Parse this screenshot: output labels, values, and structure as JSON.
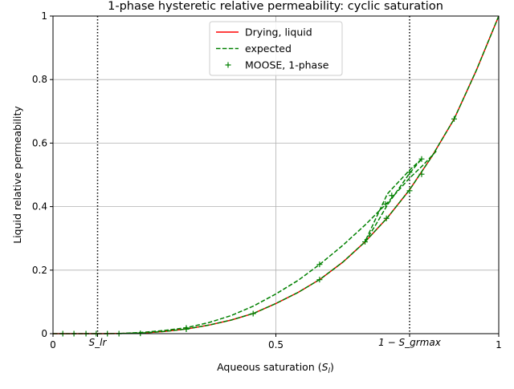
{
  "chart_data": {
    "type": "line",
    "title": "1-phase hysteretic relative permeability: cyclic saturation",
    "xlabel": "Aqueous saturation (S_l)",
    "ylabel": "Liquid relative permeability",
    "xlim": [
      0,
      1
    ],
    "ylim": [
      0,
      1
    ],
    "grid": true,
    "legend_placement": "top-center",
    "x_ticks": [
      {
        "value": 0,
        "label": "0"
      },
      {
        "value": 0.1,
        "label": "S_lr"
      },
      {
        "value": 0.5,
        "label": "0.5"
      },
      {
        "value": 0.8,
        "label": "1 − S_grmax"
      },
      {
        "value": 1,
        "label": "1"
      }
    ],
    "y_ticks": [
      {
        "value": 0,
        "label": "0"
      },
      {
        "value": 0.2,
        "label": "0.2"
      },
      {
        "value": 0.4,
        "label": "0.4"
      },
      {
        "value": 0.6,
        "label": "0.6"
      },
      {
        "value": 0.8,
        "label": "0.8"
      },
      {
        "value": 1,
        "label": "1"
      }
    ],
    "vlines": [
      0.1,
      0.8
    ],
    "series": [
      {
        "name": "Drying, liquid",
        "style": "solid",
        "color": "#ff0000",
        "segments": [
          [
            [
              0,
              0
            ],
            [
              0.1,
              0
            ],
            [
              0.15,
              0.0005
            ],
            [
              0.2,
              0.002
            ],
            [
              0.25,
              0.007
            ],
            [
              0.3,
              0.015
            ],
            [
              0.35,
              0.027
            ],
            [
              0.4,
              0.043
            ],
            [
              0.45,
              0.064
            ],
            [
              0.5,
              0.095
            ],
            [
              0.55,
              0.13
            ],
            [
              0.6,
              0.172
            ],
            [
              0.65,
              0.225
            ],
            [
              0.7,
              0.289
            ],
            [
              0.75,
              0.365
            ],
            [
              0.8,
              0.453
            ],
            [
              0.85,
              0.558
            ],
            [
              0.9,
              0.676
            ],
            [
              0.95,
              0.83
            ],
            [
              1,
              1
            ]
          ]
        ]
      },
      {
        "name": "expected",
        "style": "dashed",
        "color": "#008000",
        "segments": [
          [
            [
              0,
              0
            ],
            [
              0.1,
              0
            ],
            [
              0.15,
              0.0005
            ],
            [
              0.2,
              0.002
            ],
            [
              0.25,
              0.007
            ],
            [
              0.3,
              0.015
            ],
            [
              0.35,
              0.027
            ],
            [
              0.4,
              0.043
            ],
            [
              0.45,
              0.064
            ],
            [
              0.5,
              0.095
            ],
            [
              0.55,
              0.13
            ],
            [
              0.6,
              0.172
            ],
            [
              0.65,
              0.225
            ],
            [
              0.7,
              0.289
            ],
            [
              0.75,
              0.365
            ],
            [
              0.8,
              0.453
            ],
            [
              0.85,
              0.558
            ],
            [
              0.9,
              0.676
            ],
            [
              0.95,
              0.83
            ],
            [
              1,
              1
            ]
          ],
          [
            [
              0.15,
              0.0005
            ],
            [
              0.2,
              0.004
            ],
            [
              0.25,
              0.01
            ],
            [
              0.3,
              0.019
            ],
            [
              0.35,
              0.035
            ],
            [
              0.4,
              0.057
            ],
            [
              0.45,
              0.087
            ],
            [
              0.5,
              0.125
            ],
            [
              0.55,
              0.168
            ],
            [
              0.6,
              0.22
            ],
            [
              0.65,
              0.278
            ],
            [
              0.7,
              0.342
            ],
            [
              0.75,
              0.412
            ],
            [
              0.8,
              0.49
            ],
            [
              0.83,
              0.53
            ],
            [
              0.86,
              0.575
            ]
          ],
          [
            [
              0.7,
              0.289
            ],
            [
              0.725,
              0.345
            ],
            [
              0.75,
              0.405
            ],
            [
              0.775,
              0.455
            ],
            [
              0.8,
              0.505
            ],
            [
              0.827,
              0.55
            ]
          ],
          [
            [
              0.827,
              0.55
            ],
            [
              0.8,
              0.515
            ],
            [
              0.76,
              0.455
            ],
            [
              0.75,
              0.44
            ],
            [
              0.7,
              0.29
            ]
          ]
        ]
      },
      {
        "name": "MOOSE, 1-phase",
        "style": "plus",
        "color": "#008000",
        "points": [
          [
            0.022,
            0
          ],
          [
            0.047,
            0
          ],
          [
            0.074,
            0
          ],
          [
            0.097,
            0
          ],
          [
            0.122,
            0
          ],
          [
            0.148,
            0
          ],
          [
            0.196,
            0.001
          ],
          [
            0.299,
            0.018
          ],
          [
            0.299,
            0.014
          ],
          [
            0.449,
            0.063
          ],
          [
            0.598,
            0.218
          ],
          [
            0.598,
            0.17
          ],
          [
            0.7,
            0.289
          ],
          [
            0.748,
            0.363
          ],
          [
            0.746,
            0.408
          ],
          [
            0.76,
            0.435
          ],
          [
            0.8,
            0.45
          ],
          [
            0.8,
            0.508
          ],
          [
            0.827,
            0.502
          ],
          [
            0.827,
            0.55
          ],
          [
            0.9,
            0.676
          ]
        ]
      }
    ]
  }
}
